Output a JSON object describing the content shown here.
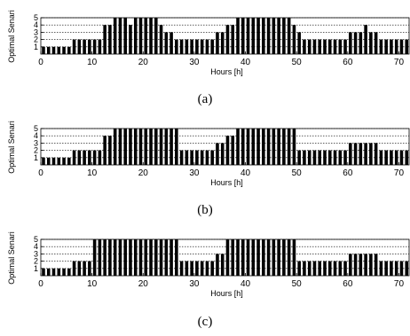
{
  "chart_data": [
    {
      "type": "bar",
      "panel": "(a)",
      "xlabel": "Hours [h]",
      "ylabel": "Optimal Senario",
      "xlim": [
        0,
        72
      ],
      "ylim": [
        0,
        5
      ],
      "xticks": [
        "0",
        "10",
        "20",
        "30",
        "40",
        "50",
        "60",
        "70"
      ],
      "yticks": [
        "1",
        "2",
        "3",
        "4",
        "5"
      ],
      "grid": "horizontal dashed",
      "x": [
        0,
        1,
        2,
        3,
        4,
        5,
        6,
        7,
        8,
        9,
        10,
        11,
        12,
        13,
        14,
        15,
        16,
        17,
        18,
        19,
        20,
        21,
        22,
        23,
        24,
        25,
        26,
        27,
        28,
        29,
        30,
        31,
        32,
        33,
        34,
        35,
        36,
        37,
        38,
        39,
        40,
        41,
        42,
        43,
        44,
        45,
        46,
        47,
        48,
        49,
        50,
        51,
        52,
        53,
        54,
        55,
        56,
        57,
        58,
        59,
        60,
        61,
        62,
        63,
        64,
        65,
        66,
        67,
        68,
        69,
        70,
        71,
        72
      ],
      "values": [
        1,
        1,
        1,
        1,
        1,
        1,
        2,
        2,
        2,
        2,
        2,
        2,
        4,
        4,
        5,
        5,
        5,
        4,
        5,
        5,
        5,
        5,
        5,
        4,
        3,
        3,
        2,
        2,
        2,
        2,
        2,
        2,
        2,
        2,
        3,
        3,
        4,
        4,
        5,
        5,
        5,
        5,
        5,
        5,
        5,
        5,
        5,
        5,
        5,
        4,
        3,
        2,
        2,
        2,
        2,
        2,
        2,
        2,
        2,
        2,
        3,
        3,
        3,
        4,
        3,
        3,
        2,
        2,
        2,
        2,
        2,
        2,
        2
      ]
    },
    {
      "type": "bar",
      "panel": "(b)",
      "xlabel": "Hours [h]",
      "ylabel": "Optimal Senario",
      "xlim": [
        0,
        72
      ],
      "ylim": [
        0,
        5
      ],
      "xticks": [
        "0",
        "10",
        "20",
        "30",
        "40",
        "50",
        "60",
        "70"
      ],
      "yticks": [
        "1",
        "2",
        "3",
        "4",
        "5"
      ],
      "grid": "horizontal dashed",
      "x": [
        0,
        1,
        2,
        3,
        4,
        5,
        6,
        7,
        8,
        9,
        10,
        11,
        12,
        13,
        14,
        15,
        16,
        17,
        18,
        19,
        20,
        21,
        22,
        23,
        24,
        25,
        26,
        27,
        28,
        29,
        30,
        31,
        32,
        33,
        34,
        35,
        36,
        37,
        38,
        39,
        40,
        41,
        42,
        43,
        44,
        45,
        46,
        47,
        48,
        49,
        50,
        51,
        52,
        53,
        54,
        55,
        56,
        57,
        58,
        59,
        60,
        61,
        62,
        63,
        64,
        65,
        66,
        67,
        68,
        69,
        70,
        71,
        72
      ],
      "values": [
        1,
        1,
        1,
        1,
        1,
        1,
        2,
        2,
        2,
        2,
        2,
        2,
        4,
        4,
        5,
        5,
        5,
        5,
        5,
        5,
        5,
        5,
        5,
        5,
        5,
        5,
        5,
        2,
        2,
        2,
        2,
        2,
        2,
        2,
        3,
        3,
        4,
        4,
        5,
        5,
        5,
        5,
        5,
        5,
        5,
        5,
        5,
        5,
        5,
        5,
        2,
        2,
        2,
        2,
        2,
        2,
        2,
        2,
        2,
        2,
        3,
        3,
        3,
        3,
        3,
        3,
        2,
        2,
        2,
        2,
        2,
        2,
        2
      ]
    },
    {
      "type": "bar",
      "panel": "(c)",
      "xlabel": "Hours [h]",
      "ylabel": "Optimal Senario",
      "xlim": [
        0,
        72
      ],
      "ylim": [
        0,
        5
      ],
      "xticks": [
        "0",
        "10",
        "20",
        "30",
        "40",
        "50",
        "60",
        "70"
      ],
      "yticks": [
        "1",
        "2",
        "3",
        "4",
        "5"
      ],
      "grid": "horizontal dashed",
      "x": [
        0,
        1,
        2,
        3,
        4,
        5,
        6,
        7,
        8,
        9,
        10,
        11,
        12,
        13,
        14,
        15,
        16,
        17,
        18,
        19,
        20,
        21,
        22,
        23,
        24,
        25,
        26,
        27,
        28,
        29,
        30,
        31,
        32,
        33,
        34,
        35,
        36,
        37,
        38,
        39,
        40,
        41,
        42,
        43,
        44,
        45,
        46,
        47,
        48,
        49,
        50,
        51,
        52,
        53,
        54,
        55,
        56,
        57,
        58,
        59,
        60,
        61,
        62,
        63,
        64,
        65,
        66,
        67,
        68,
        69,
        70,
        71,
        72
      ],
      "values": [
        1,
        1,
        1,
        1,
        1,
        1,
        2,
        2,
        2,
        2,
        5,
        5,
        5,
        5,
        5,
        5,
        5,
        5,
        5,
        5,
        5,
        5,
        5,
        5,
        5,
        5,
        5,
        2,
        2,
        2,
        2,
        2,
        2,
        2,
        3,
        3,
        5,
        5,
        5,
        5,
        5,
        5,
        5,
        5,
        5,
        5,
        5,
        5,
        5,
        5,
        2,
        2,
        2,
        2,
        2,
        2,
        2,
        2,
        2,
        2,
        3,
        3,
        3,
        3,
        3,
        3,
        2,
        2,
        2,
        2,
        2,
        2,
        2
      ]
    }
  ],
  "captions": [
    "(a)",
    "(b)",
    "(c)"
  ]
}
